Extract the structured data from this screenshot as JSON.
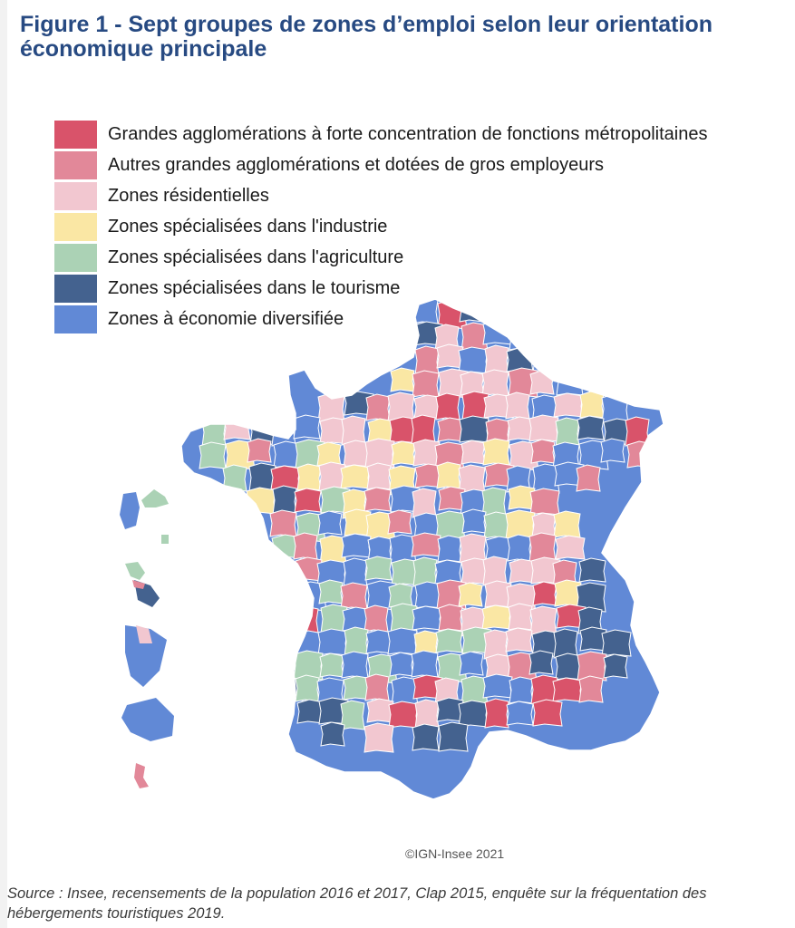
{
  "title": "Figure 1 - Sept groupes de zones d’emploi selon leur orientation économique principale",
  "legend": [
    {
      "label": "Grandes agglomérations à forte concentration de fonctions métropolitaines",
      "color": "#d9536a"
    },
    {
      "label": "Autres grandes agglomérations et dotées de gros employeurs",
      "color": "#e28899"
    },
    {
      "label": "Zones résidentielles",
      "color": "#f2c7d0"
    },
    {
      "label": "Zones spécialisées dans l'industrie",
      "color": "#fae7a4"
    },
    {
      "label": "Zones spécialisées dans l'agriculture",
      "color": "#abd2b5"
    },
    {
      "label": "Zones spécialisées dans le tourisme",
      "color": "#44628f"
    },
    {
      "label": "Zones à économie diversifiée",
      "color": "#6189d6"
    }
  ],
  "map": {
    "border_color": "#ffffff"
  },
  "copyright": "©IGN-Insee 2021",
  "source": "Source : Insee, recensements de la population 2016 et 2017, Clap 2015, enquête sur la fréquentation des hébergements touristiques 2019."
}
